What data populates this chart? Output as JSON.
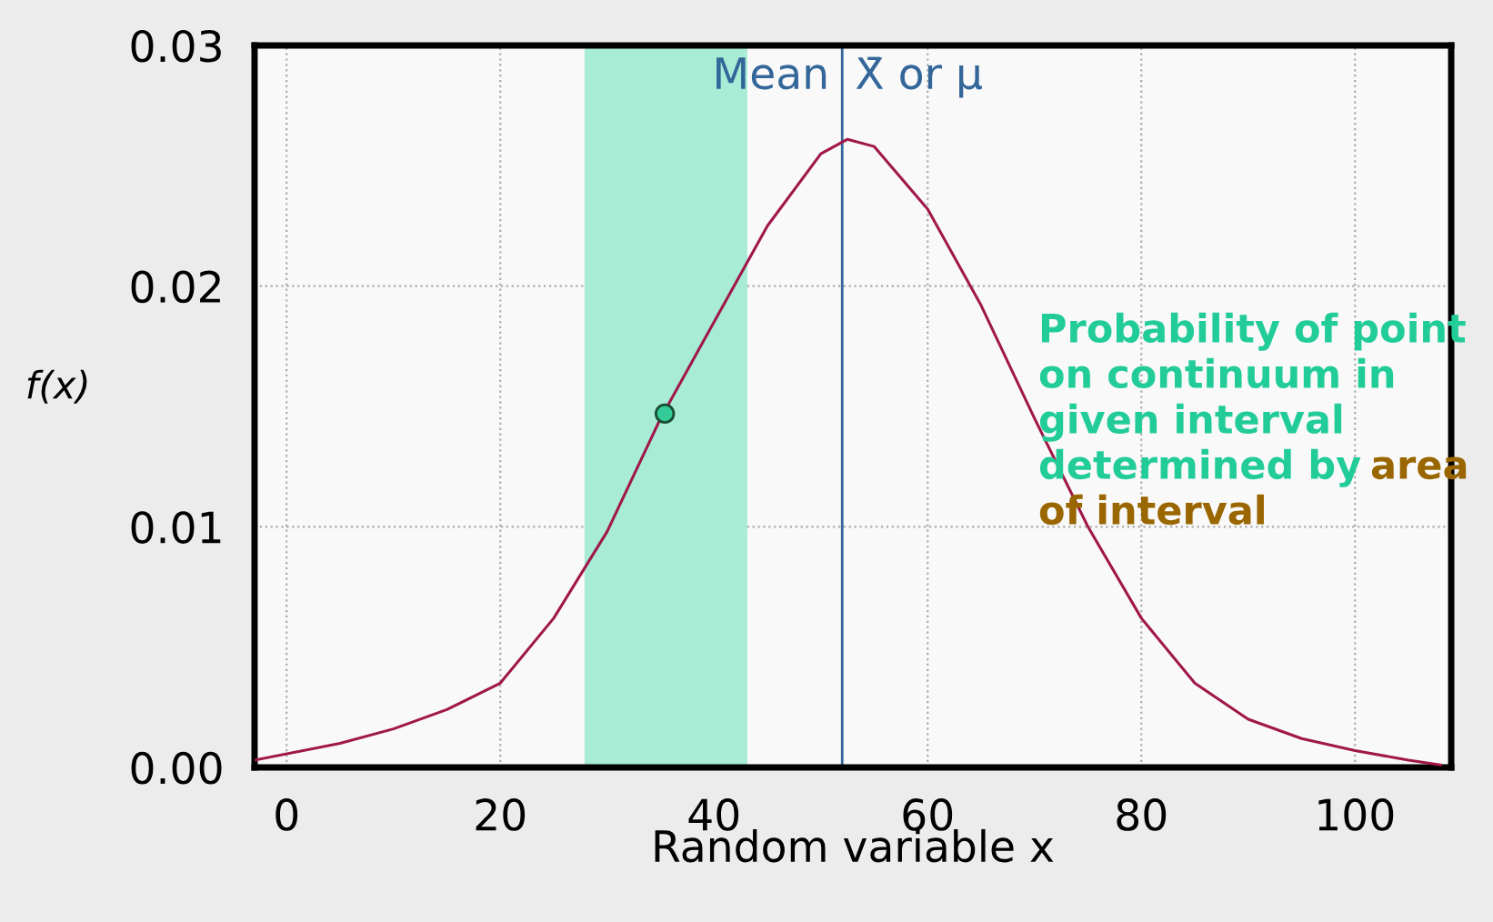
{
  "chart_data": {
    "type": "line",
    "xlabel": "Random variable x",
    "ylabel": "f(x)",
    "xlim": [
      -3,
      109
    ],
    "xticks": [
      0,
      20,
      40,
      60,
      80,
      100
    ],
    "ylim": [
      0,
      0.03
    ],
    "yticks": [
      {
        "value": 0,
        "label": "0.00"
      },
      0.01,
      0.02,
      0.03
    ],
    "grid": true,
    "series": [
      {
        "color": "#a0174a",
        "x": [
          -3,
          5,
          10,
          15,
          20,
          25,
          30,
          35,
          40,
          45,
          50,
          52.5,
          55,
          60,
          65,
          70,
          75,
          80,
          85,
          90,
          95,
          100,
          105,
          108
        ],
        "values": [
          0.0003,
          0.001,
          0.0016,
          0.0024,
          0.0035,
          0.0062,
          0.0098,
          0.0145,
          0.0185,
          0.0225,
          0.0255,
          0.0261,
          0.0258,
          0.0232,
          0.0192,
          0.0145,
          0.01,
          0.0062,
          0.0035,
          0.002,
          0.0012,
          0.0007,
          0.0003,
          0.0001
        ]
      },
      {
        "type": "scatter",
        "color": "#33cc99",
        "x": [
          35.4
        ],
        "values": [
          0.0147
        ]
      }
    ],
    "ref_lines": [
      {
        "axis": "x",
        "value": 52,
        "label": "Mean  X̄ or μ",
        "color": "#336699"
      }
    ],
    "bands": [
      {
        "axis": "x",
        "from": 28,
        "to": 43,
        "color": "#a8ecd6"
      }
    ],
    "annotations": [
      "Probability of point\non continuum in\ngiven interval\ndetermined by",
      "area\nof interval"
    ]
  }
}
